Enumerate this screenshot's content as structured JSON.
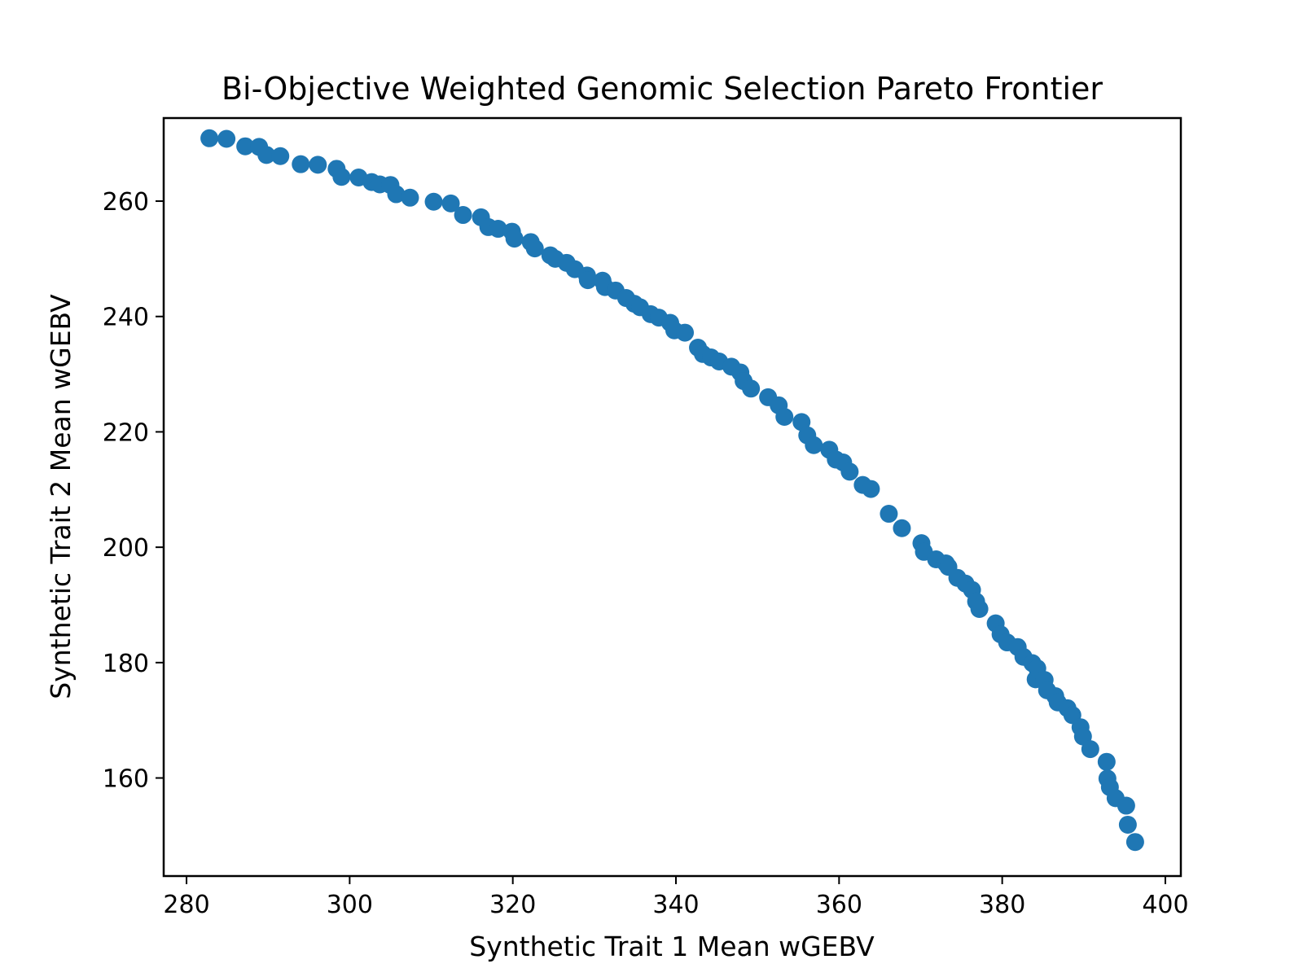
{
  "chart_data": {
    "type": "scatter",
    "title": "Bi-Objective Weighted Genomic Selection Pareto Frontier",
    "xlabel": "Synthetic Trait 1 Mean wGEBV",
    "ylabel": "Synthetic Trait 2 Mean wGEBV",
    "xlim": [
      277.2,
      401.9
    ],
    "ylim": [
      143.0,
      274.4
    ],
    "xticks": [
      280,
      300,
      320,
      340,
      360,
      380,
      400
    ],
    "yticks": [
      160,
      180,
      200,
      220,
      240,
      260
    ],
    "grid": false,
    "marker_color": "#1f77b4",
    "series": [
      {
        "x": [
          282.8,
          284.9,
          287.2,
          288.9,
          289.8,
          291.5,
          294.0,
          296.1,
          298.4,
          299.0,
          301.1,
          302.7,
          303.7,
          305.0,
          305.7,
          307.4,
          310.3,
          312.4,
          313.9,
          316.1,
          317.0,
          318.2,
          319.9,
          320.2,
          322.2,
          322.7,
          324.6,
          325.2,
          326.6,
          327.6,
          329.1,
          329.2,
          331.0,
          331.3,
          332.6,
          333.9,
          334.9,
          335.6,
          336.9,
          337.9,
          339.3,
          339.8,
          341.1,
          342.7,
          343.3,
          344.3,
          345.3,
          346.8,
          347.9,
          348.3,
          349.2,
          351.3,
          352.6,
          353.3,
          355.4,
          356.1,
          356.9,
          358.8,
          359.6,
          360.5,
          361.3,
          362.9,
          363.9,
          366.1,
          367.7,
          370.1,
          370.4,
          371.9,
          373.1,
          373.4,
          374.5,
          375.5,
          376.3,
          376.8,
          377.2,
          379.2,
          379.8,
          380.6,
          381.9,
          382.6,
          383.7,
          384.1,
          384.3,
          385.2,
          385.5,
          386.5,
          386.8,
          388.0,
          388.6,
          389.6,
          389.9,
          390.8,
          392.8,
          392.9,
          393.2,
          393.9,
          395.2,
          395.4,
          396.3
        ],
        "y": [
          270.9,
          270.8,
          269.5,
          269.4,
          268.0,
          267.8,
          266.4,
          266.3,
          265.6,
          264.2,
          264.1,
          263.3,
          262.9,
          262.8,
          261.2,
          260.6,
          259.9,
          259.6,
          257.6,
          257.2,
          255.5,
          255.2,
          254.7,
          253.5,
          252.9,
          251.8,
          250.6,
          250.0,
          249.3,
          248.2,
          247.1,
          246.3,
          246.2,
          245.1,
          244.5,
          243.2,
          242.2,
          241.6,
          240.4,
          239.8,
          238.9,
          237.6,
          237.2,
          234.6,
          233.5,
          232.9,
          232.2,
          231.3,
          230.3,
          228.8,
          227.5,
          226.0,
          224.6,
          222.6,
          221.7,
          219.4,
          217.7,
          216.9,
          215.2,
          214.7,
          213.1,
          210.8,
          210.1,
          205.8,
          203.3,
          200.7,
          199.2,
          197.9,
          197.2,
          196.6,
          194.7,
          193.7,
          192.6,
          190.6,
          189.3,
          186.8,
          184.9,
          183.5,
          182.7,
          181.0,
          179.9,
          177.1,
          179.0,
          177.0,
          175.2,
          174.2,
          173.1,
          172.1,
          170.9,
          168.8,
          167.2,
          165.0,
          162.8,
          159.9,
          158.4,
          156.5,
          155.2,
          151.9,
          148.9
        ]
      }
    ]
  }
}
